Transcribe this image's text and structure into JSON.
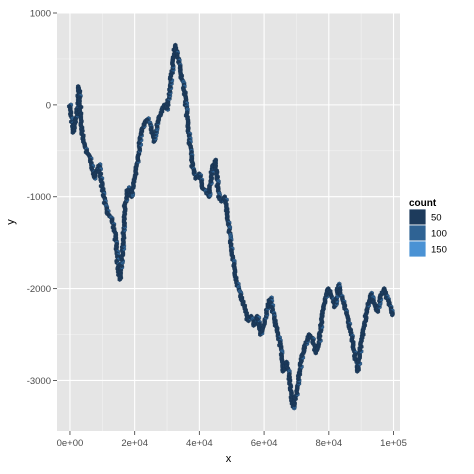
{
  "chart_data": {
    "type": "heatmap",
    "title": "",
    "xlabel": "x",
    "ylabel": "y",
    "xlim": [
      -4000,
      102000
    ],
    "ylim": [
      -3550,
      1000
    ],
    "grid": true,
    "legend_position": "right",
    "x_ticks": [
      {
        "value": 0,
        "label": "0e+00"
      },
      {
        "value": 20000,
        "label": "2e+04"
      },
      {
        "value": 40000,
        "label": "4e+04"
      },
      {
        "value": 60000,
        "label": "6e+04"
      },
      {
        "value": 80000,
        "label": "8e+04"
      },
      {
        "value": 100000,
        "label": "1e+05"
      }
    ],
    "y_ticks": [
      {
        "value": 1000,
        "label": "1000"
      },
      {
        "value": 0,
        "label": "0"
      },
      {
        "value": -1000,
        "label": "-1000"
      },
      {
        "value": -2000,
        "label": "-2000"
      },
      {
        "value": -3000,
        "label": "-3000"
      }
    ],
    "legend": {
      "title": "count",
      "entries": [
        {
          "label": "50",
          "color": "#1d3b5c"
        },
        {
          "label": "100",
          "color": "#2f6394"
        },
        {
          "label": "150",
          "color": "#4a92d4"
        }
      ]
    },
    "path": {
      "x": [
        0,
        1000,
        2000,
        2800,
        3800,
        5000,
        6500,
        7500,
        9000,
        10000,
        11000,
        12000,
        13000,
        14000,
        15000,
        15500,
        16500,
        17000,
        18000,
        19000,
        20000,
        21000,
        22000,
        23000,
        24000,
        25000,
        26000,
        27000,
        28000,
        29000,
        30000,
        31000,
        32000,
        32500,
        33500,
        34500,
        35500,
        36000,
        37000,
        38000,
        39000,
        40000,
        41000,
        42000,
        43000,
        44000,
        45000,
        46000,
        47000,
        48000,
        49000,
        50000,
        51000,
        52000,
        53000,
        54000,
        55000,
        56000,
        57000,
        58000,
        59000,
        60000,
        61000,
        62000,
        63000,
        64000,
        65000,
        66000,
        67000,
        68000,
        69000,
        70000,
        71000,
        72000,
        73000,
        74000,
        75000,
        76000,
        77000,
        78000,
        79000,
        80000,
        81000,
        82000,
        83000,
        84000,
        85000,
        86000,
        87000,
        88000,
        89000,
        90000,
        91000,
        92000,
        93000,
        94000,
        95000,
        96000,
        97000,
        98000,
        99000,
        100000
      ],
      "y": [
        0,
        -300,
        -150,
        200,
        -300,
        -500,
        -600,
        -800,
        -650,
        -900,
        -1100,
        -1200,
        -1250,
        -1400,
        -1800,
        -1900,
        -1500,
        -1100,
        -900,
        -1000,
        -800,
        -600,
        -300,
        -200,
        -150,
        -250,
        -400,
        -200,
        -100,
        0,
        -50,
        200,
        500,
        650,
        500,
        300,
        150,
        -50,
        -400,
        -700,
        -800,
        -750,
        -900,
        -950,
        -1000,
        -700,
        -600,
        -1000,
        -1050,
        -1000,
        -1300,
        -1600,
        -1800,
        -2000,
        -2100,
        -2200,
        -2350,
        -2300,
        -2400,
        -2300,
        -2500,
        -2400,
        -2200,
        -2100,
        -2300,
        -2450,
        -2600,
        -2900,
        -2800,
        -3000,
        -3300,
        -3150,
        -2900,
        -2700,
        -2600,
        -2500,
        -2550,
        -2700,
        -2600,
        -2300,
        -2100,
        -2000,
        -2100,
        -2200,
        -1950,
        -2100,
        -2200,
        -2350,
        -2500,
        -2700,
        -2900,
        -2600,
        -2400,
        -2200,
        -2050,
        -2150,
        -2250,
        -2100,
        -2000,
        -2100,
        -2200,
        -2300
      ]
    }
  }
}
